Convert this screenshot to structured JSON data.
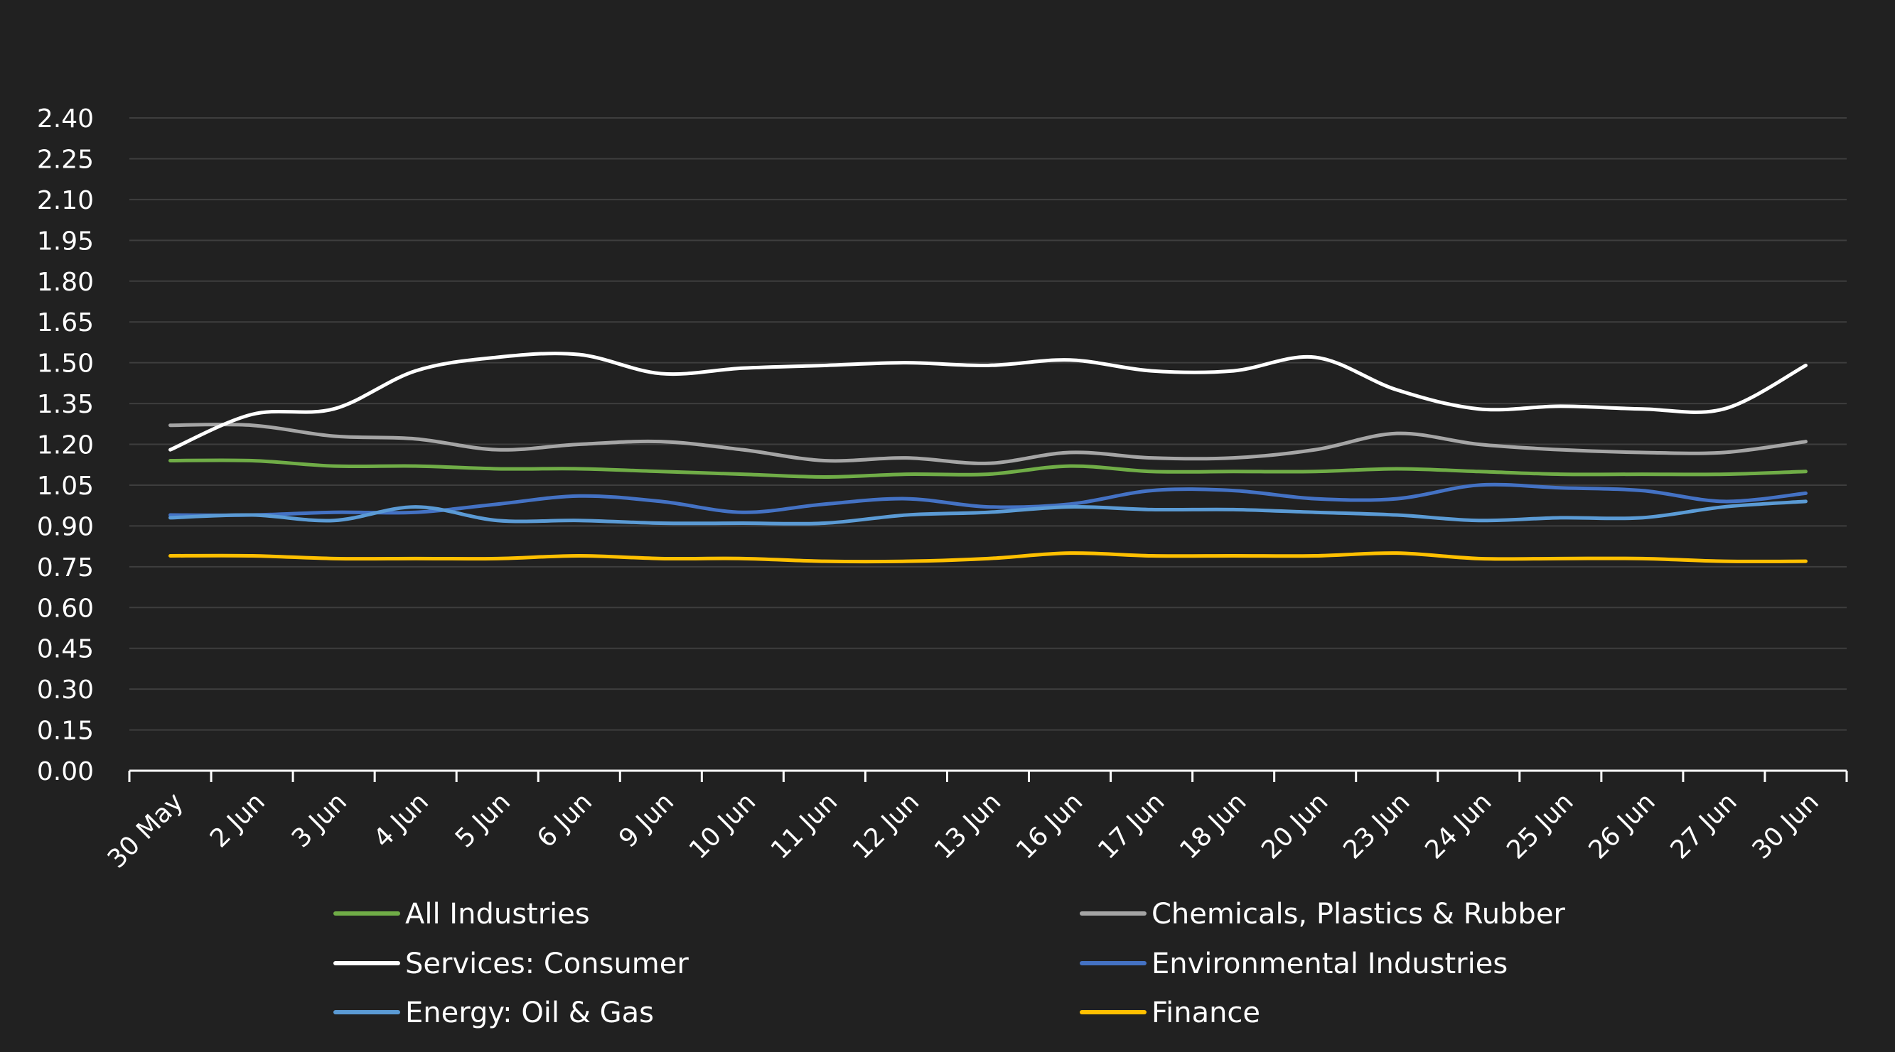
{
  "chart_data": {
    "type": "line",
    "title": "",
    "xlabel": "",
    "ylabel": "",
    "ylim": [
      0,
      2.4
    ],
    "yticks": [
      "0.00",
      "0.15",
      "0.30",
      "0.45",
      "0.60",
      "0.75",
      "0.90",
      "1.05",
      "1.20",
      "1.35",
      "1.50",
      "1.65",
      "1.80",
      "1.95",
      "2.10",
      "2.25",
      "2.40"
    ],
    "grid": "horizontal",
    "legend_position": "bottom",
    "categories": [
      "30 May",
      "2 Jun",
      "3 Jun",
      "4 Jun",
      "5 Jun",
      "6 Jun",
      "9 Jun",
      "10 Jun",
      "11 Jun",
      "12 Jun",
      "13 Jun",
      "16 Jun",
      "17 Jun",
      "18 Jun",
      "20 Jun",
      "23 Jun",
      "24 Jun",
      "25 Jun",
      "26 Jun",
      "27 Jun",
      "30 Jun"
    ],
    "series": [
      {
        "name": "All Industries",
        "color": "#70ad47",
        "values": [
          1.14,
          1.14,
          1.12,
          1.12,
          1.11,
          1.11,
          1.1,
          1.09,
          1.08,
          1.09,
          1.09,
          1.12,
          1.1,
          1.1,
          1.1,
          1.11,
          1.1,
          1.09,
          1.09,
          1.09,
          1.1
        ]
      },
      {
        "name": "Chemicals, Plastics & Rubber",
        "color": "#a5a5a5",
        "values": [
          1.27,
          1.27,
          1.23,
          1.22,
          1.18,
          1.2,
          1.21,
          1.18,
          1.14,
          1.15,
          1.13,
          1.17,
          1.15,
          1.15,
          1.18,
          1.24,
          1.2,
          1.18,
          1.17,
          1.17,
          1.21
        ]
      },
      {
        "name": "Services: Consumer",
        "color": "#ffffff",
        "values": [
          1.18,
          1.31,
          1.33,
          1.47,
          1.52,
          1.53,
          1.46,
          1.48,
          1.49,
          1.5,
          1.49,
          1.51,
          1.47,
          1.47,
          1.52,
          1.4,
          1.33,
          1.34,
          1.33,
          1.33,
          1.49
        ]
      },
      {
        "name": "Environmental Industries",
        "color": "#4472c4",
        "values": [
          0.94,
          0.94,
          0.95,
          0.95,
          0.98,
          1.01,
          0.99,
          0.95,
          0.98,
          1.0,
          0.97,
          0.98,
          1.03,
          1.03,
          1.0,
          1.0,
          1.05,
          1.04,
          1.03,
          0.99,
          1.02
        ]
      },
      {
        "name": "Energy: Oil & Gas",
        "color": "#5b9bd5",
        "values": [
          0.93,
          0.94,
          0.92,
          0.97,
          0.92,
          0.92,
          0.91,
          0.91,
          0.91,
          0.94,
          0.95,
          0.97,
          0.96,
          0.96,
          0.95,
          0.94,
          0.92,
          0.93,
          0.93,
          0.97,
          0.99
        ]
      },
      {
        "name": "Finance",
        "color": "#ffc000",
        "values": [
          0.79,
          0.79,
          0.78,
          0.78,
          0.78,
          0.79,
          0.78,
          0.78,
          0.77,
          0.77,
          0.78,
          0.8,
          0.79,
          0.79,
          0.79,
          0.8,
          0.78,
          0.78,
          0.78,
          0.77,
          0.77
        ]
      }
    ]
  },
  "colors": {
    "background": "#212121",
    "gridline": "#3e3e3e",
    "axis": "#ffffff",
    "text": "#ffffff"
  }
}
